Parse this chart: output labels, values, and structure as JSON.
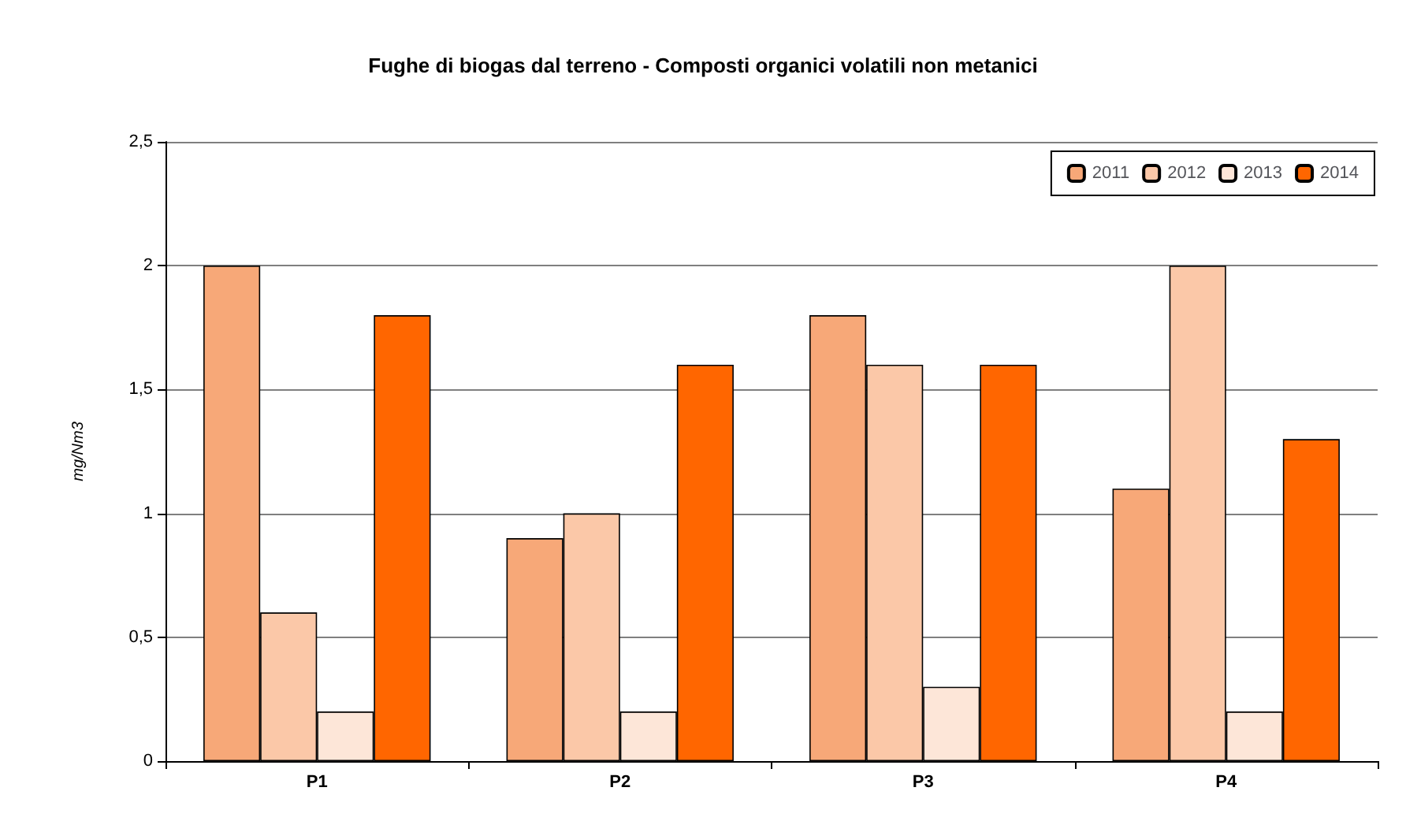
{
  "chart_data": {
    "type": "bar",
    "title": "Fughe di biogas dal terreno - Composti organici volatili non metanici",
    "ylabel": "mg/Nm3",
    "categories": [
      "P1",
      "P2",
      "P3",
      "P4"
    ],
    "series": [
      {
        "name": "2011",
        "color": "#f7a878",
        "values": [
          2.0,
          0.9,
          1.8,
          1.1
        ]
      },
      {
        "name": "2012",
        "color": "#fbc8a8",
        "values": [
          0.6,
          1.0,
          1.6,
          2.0
        ]
      },
      {
        "name": "2013",
        "color": "#fde6d8",
        "values": [
          0.2,
          0.2,
          0.3,
          0.2
        ]
      },
      {
        "name": "2014",
        "color": "#ff6600",
        "values": [
          1.8,
          1.6,
          1.6,
          1.3
        ]
      }
    ],
    "ylim": [
      0,
      2.5
    ],
    "yticks": [
      0,
      {
        "value": 0.5,
        "label": "0,5"
      },
      1,
      {
        "value": 1.5,
        "label": "1,5"
      },
      2,
      {
        "value": 2.5,
        "label": "2,5"
      }
    ],
    "grid": "y",
    "legend": "top right"
  }
}
